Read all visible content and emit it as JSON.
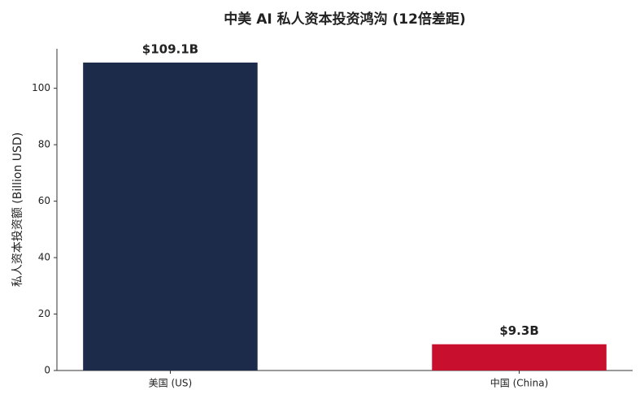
{
  "chart_data": {
    "type": "bar",
    "title": "中美 AI 私人资本投资鸿沟 (12倍差距)",
    "y_label": "私人资本投资额 (Billion USD)",
    "categories": [
      "美国 (US)",
      "中国 (China)"
    ],
    "values": [
      109.1,
      9.3
    ],
    "value_labels": [
      "$109.1B",
      "$9.3B"
    ],
    "colors": [
      "#1c2b4a",
      "#c8102e"
    ],
    "ylim": [
      0,
      114
    ],
    "yticks": [
      0,
      20,
      40,
      60,
      80,
      100
    ],
    "grid": false
  }
}
